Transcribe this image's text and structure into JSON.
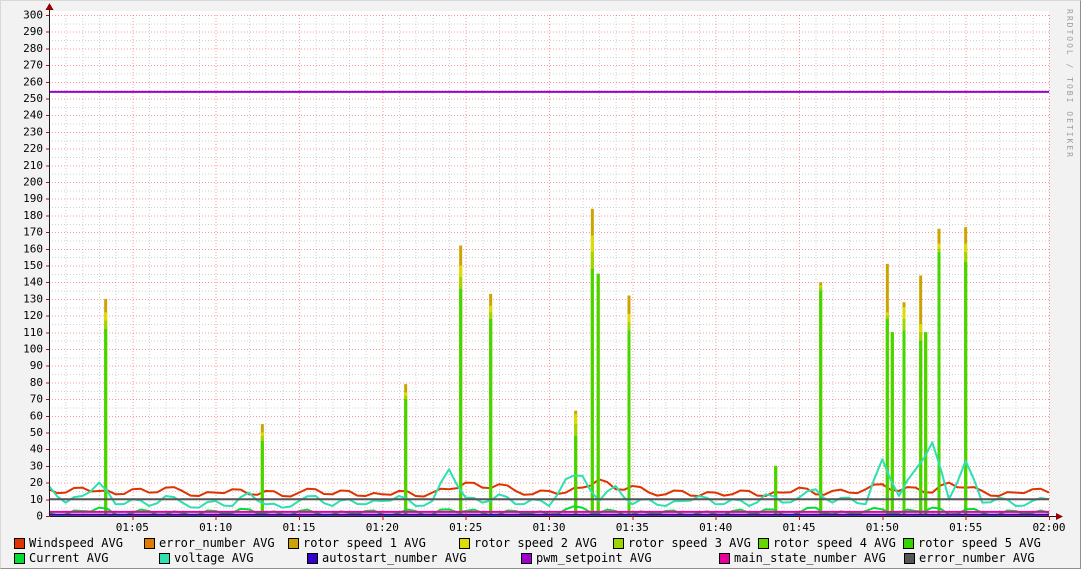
{
  "watermark": "RRDTOOL / TOBI OETIKER",
  "legend": {
    "row1_y": 535,
    "row2_y": 550,
    "row1": [
      {
        "label": "Windspeed AVG",
        "color": "#DF3300",
        "x": 13
      },
      {
        "label": "error_number AVG",
        "color": "#E07D00",
        "x": 143
      },
      {
        "label": "rotor speed 1 AVG",
        "color": "#CCA300",
        "x": 287
      },
      {
        "label": "rotor speed 2 AVG",
        "color": "#DDDD00",
        "x": 458
      },
      {
        "label": "rotor speed 3 AVG",
        "color": "#9FD600",
        "x": 612
      },
      {
        "label": "rotor speed 4 AVG",
        "color": "#66D600",
        "x": 757
      },
      {
        "label": "rotor speed 5 AVG",
        "color": "#33D600",
        "x": 902
      }
    ],
    "row2": [
      {
        "label": "Current AVG",
        "color": "#00DD33",
        "x": 13
      },
      {
        "label": "voltage AVG",
        "color": "#2EE0B0",
        "x": 158
      },
      {
        "label": "autostart_number AVG",
        "color": "#3300CC",
        "x": 306
      },
      {
        "label": "pwm_setpoint AVG",
        "color": "#A000CC",
        "x": 520
      },
      {
        "label": "main_state_number AVG",
        "color": "#E6009C",
        "x": 718
      },
      {
        "label": "error_number AVG",
        "color": "#555555",
        "x": 903
      }
    ]
  },
  "chart_data": {
    "type": "line",
    "title": "",
    "xlabel": "",
    "ylabel": "",
    "ylim": [
      0,
      300
    ],
    "y_tick_step": 10,
    "x_minutes": 60,
    "x_tick_minutes": [
      5,
      10,
      15,
      20,
      25,
      30,
      35,
      40,
      45,
      50,
      55,
      60
    ],
    "x_tick_labels": [
      "01:05",
      "01:10",
      "01:15",
      "01:20",
      "01:25",
      "01:30",
      "01:35",
      "01:40",
      "01:45",
      "01:50",
      "01:55",
      "02:00"
    ],
    "grid": {
      "major_h_step": 10,
      "minor_h_step": 5,
      "major_v_step_min": 5,
      "minor_v_step_min": 1,
      "major_color": "#FF0000",
      "minor_color": "#CCCCCC"
    },
    "axis": {
      "color": "#1a1a1a",
      "arrow_color": "#990000",
      "tick_color": "#E00000"
    },
    "series": [
      {
        "name": "Windspeed AVG",
        "kind": "wave",
        "color": "#DF3300",
        "width": 2,
        "per_minute": [
          16,
          14,
          17,
          15,
          13,
          16,
          14,
          17,
          15,
          12,
          14,
          16,
          13,
          15,
          12,
          14,
          16,
          13,
          15,
          12,
          13,
          15,
          12,
          14,
          16,
          20,
          17,
          19,
          15,
          13,
          15,
          14,
          17,
          22,
          16,
          18,
          14,
          13,
          15,
          12,
          14,
          13,
          15,
          12,
          14,
          17,
          13,
          15,
          14,
          16,
          19,
          15,
          17,
          14,
          20,
          17,
          15,
          12,
          14,
          16,
          14
        ]
      },
      {
        "name": "error_number AVG",
        "kind": "flat",
        "color": "#E07D00",
        "width": 2,
        "value": 0.4
      },
      {
        "name": "rotor speeds 1-5 AVG",
        "kind": "spikes",
        "spike_width": 3,
        "layers": [
          {
            "name": "rotor speed 1 AVG",
            "color": "#CCA300"
          },
          {
            "name": "rotor speed 2 AVG",
            "color": "#DDDD00"
          },
          {
            "name": "rotor speed 3 AVG",
            "color": "#9FD600"
          },
          {
            "name": "rotor speed 4+5 AVG",
            "color": "#44D600"
          }
        ],
        "events_columns": [
          "minute",
          "rotor1_peak",
          "rotor2_peak",
          "rotor3_peak",
          "rotor45_peak"
        ],
        "events": [
          [
            3.4,
            130,
            122,
            117,
            112
          ],
          [
            12.8,
            55,
            50,
            48,
            45
          ],
          [
            21.4,
            79,
            74,
            72,
            70
          ],
          [
            24.7,
            162,
            150,
            143,
            136
          ],
          [
            26.5,
            133,
            126,
            122,
            118
          ],
          [
            31.6,
            63,
            61,
            55,
            48
          ],
          [
            32.6,
            184,
            168,
            158,
            148
          ],
          [
            32.95,
            145,
            145,
            145,
            145
          ],
          [
            34.8,
            132,
            121,
            116,
            111
          ],
          [
            43.6,
            30,
            30,
            30,
            30
          ],
          [
            46.3,
            140,
            138,
            137,
            135
          ],
          [
            50.3,
            151,
            122,
            120,
            118
          ],
          [
            50.6,
            110,
            110,
            110,
            110
          ],
          [
            51.3,
            128,
            125,
            118,
            111
          ],
          [
            52.3,
            144,
            115,
            110,
            105
          ],
          [
            52.6,
            110,
            110,
            110,
            110
          ],
          [
            53.4,
            172,
            163,
            160,
            158
          ],
          [
            55.0,
            173,
            163,
            158,
            152
          ]
        ]
      },
      {
        "name": "Current AVG",
        "kind": "wave",
        "color": "#00DD33",
        "width": 2,
        "per_minute": [
          2,
          1,
          3,
          5,
          1,
          2,
          3,
          1,
          2,
          1,
          3,
          2,
          4,
          2,
          1,
          3,
          2,
          1,
          2,
          3,
          1,
          2,
          3,
          1,
          4,
          3,
          2,
          1,
          3,
          2,
          1,
          4,
          5,
          2,
          3,
          1,
          2,
          3,
          1,
          2,
          1,
          3,
          2,
          4,
          1,
          2,
          5,
          1,
          2,
          3,
          4,
          2,
          3,
          5,
          1,
          4,
          2,
          1,
          3,
          2,
          2
        ]
      },
      {
        "name": "voltage AVG",
        "kind": "wave",
        "color": "#2EE0B0",
        "width": 2,
        "per_minute": [
          18,
          8,
          12,
          20,
          7,
          10,
          6,
          12,
          8,
          5,
          9,
          6,
          14,
          7,
          5,
          9,
          12,
          6,
          10,
          7,
          9,
          12,
          6,
          9,
          28,
          11,
          8,
          13,
          7,
          10,
          6,
          22,
          24,
          9,
          18,
          7,
          10,
          6,
          9,
          12,
          7,
          10,
          6,
          13,
          8,
          11,
          16,
          8,
          11,
          7,
          34,
          12,
          28,
          44,
          10,
          33,
          8,
          11,
          6,
          9,
          10
        ]
      },
      {
        "name": "autostart_number AVG",
        "kind": "flat",
        "color": "#3300CC",
        "width": 2,
        "value": 0.8
      },
      {
        "name": "pwm_setpoint AVG",
        "kind": "flat",
        "color": "#A000CC",
        "width": 2,
        "value": 254
      },
      {
        "name": "main_state_number AVG",
        "kind": "flat",
        "color": "#E6009C",
        "width": 2,
        "value": 2.5
      },
      {
        "name": "error_number AVG",
        "kind": "flat",
        "color": "#555555",
        "width": 2,
        "value": 10
      }
    ]
  }
}
